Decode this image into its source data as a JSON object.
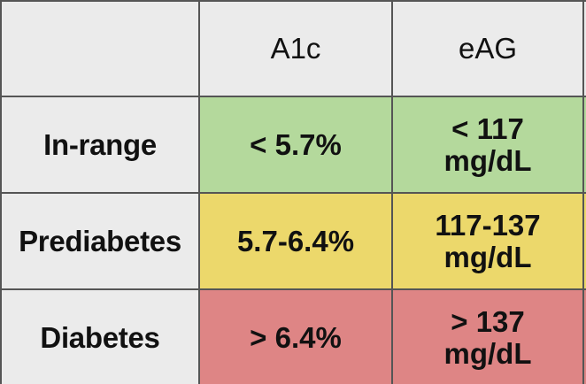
{
  "table": {
    "headers": [
      "",
      "A1c",
      "eAG"
    ],
    "rows": [
      {
        "label": "In-range",
        "a1c": "< 5.7%",
        "eag_line1": "< 117",
        "eag_line2": "mg/dL",
        "color": "#b4d99c"
      },
      {
        "label": "Prediabetes",
        "a1c": "5.7-6.4%",
        "eag_line1": "117-137",
        "eag_line2": "mg/dL",
        "color": "#ecd86b"
      },
      {
        "label": "Diabetes",
        "a1c": "> 6.4%",
        "eag_line1": "> 137",
        "eag_line2": "mg/dL",
        "color": "#de8585"
      }
    ]
  },
  "colors": {
    "background": "#ebebeb",
    "border": "#555555",
    "text": "#111111",
    "in_range": "#b4d99c",
    "prediabetes": "#ecd86b",
    "diabetes": "#de8585"
  }
}
